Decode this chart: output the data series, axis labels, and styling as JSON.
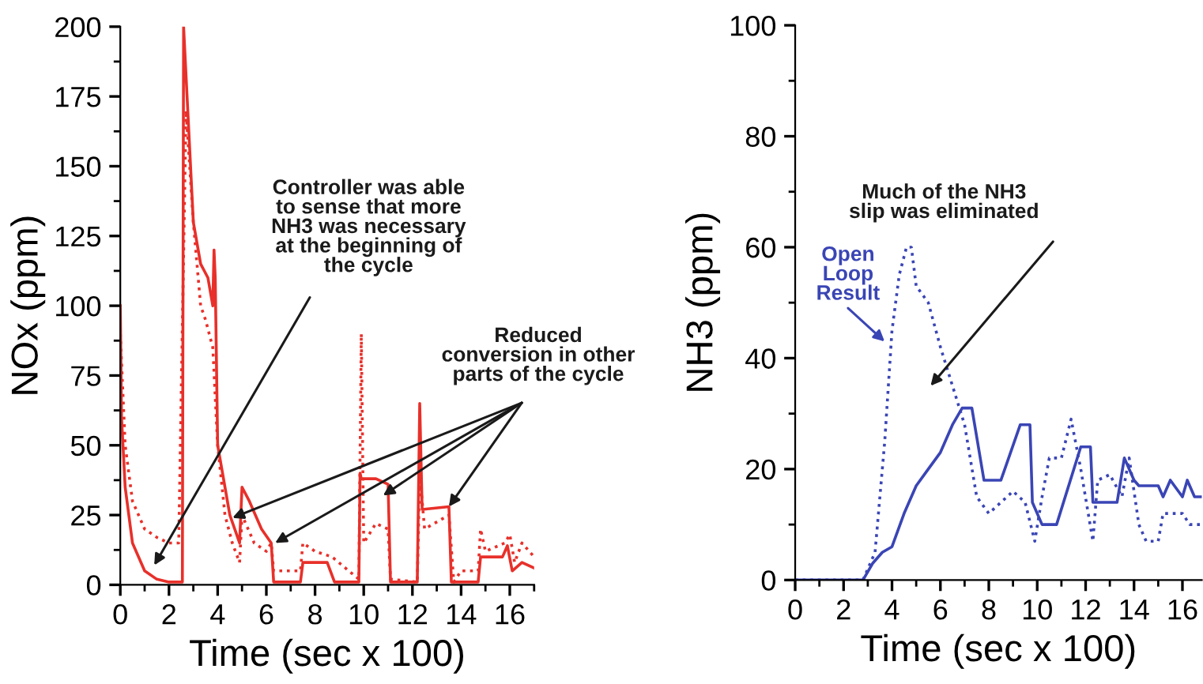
{
  "chart_data": [
    {
      "type": "line",
      "xlabel": "Time (sec x 100)",
      "ylabel": "NOx (ppm)",
      "xlim": [
        0,
        17
      ],
      "ylim": [
        0,
        200
      ],
      "xticks": [
        0,
        2,
        4,
        6,
        8,
        10,
        12,
        14,
        16
      ],
      "yticks": [
        0,
        25,
        50,
        75,
        100,
        125,
        150,
        175,
        200
      ],
      "grid": false,
      "legend": false,
      "series": [
        {
          "color": "#e8302a",
          "line_style": "solid",
          "x": [
            0,
            0.05,
            0.2,
            0.5,
            1,
            1.5,
            2,
            2.5,
            2.55,
            2.6,
            2.8,
            3.0,
            3.3,
            3.6,
            3.8,
            3.85,
            3.9,
            4.0,
            4.2,
            4.5,
            4.9,
            5.0,
            5.3,
            5.8,
            6.2,
            6.3,
            7.4,
            7.5,
            8.5,
            8.8,
            9.8,
            9.85,
            9.9,
            10.5,
            11,
            11.1,
            12.2,
            12.3,
            12.4,
            13.5,
            13.6,
            14.7,
            14.8,
            15.7,
            15.9,
            16.1,
            16.5,
            17
          ],
          "values": [
            100,
            60,
            35,
            15,
            5,
            2,
            1,
            1,
            1,
            200,
            165,
            130,
            115,
            110,
            100,
            120,
            110,
            50,
            40,
            25,
            15,
            35,
            30,
            20,
            15,
            1,
            1,
            8,
            8,
            1,
            1,
            40,
            38,
            38,
            36,
            1,
            1,
            65,
            27,
            28,
            1,
            1,
            10,
            10,
            14,
            5,
            8,
            6
          ]
        },
        {
          "color": "#e8302a",
          "line_style": "dotted",
          "x": [
            0,
            0.2,
            0.5,
            1,
            1.5,
            2,
            2.4,
            2.7,
            3.0,
            3.3,
            3.5,
            3.8,
            4.0,
            4.3,
            4.6,
            4.9,
            5.0,
            5.5,
            6.0,
            6.2,
            6.3,
            7.4,
            7.5,
            8,
            8.7,
            9.8,
            9.9,
            10,
            10.5,
            11,
            11.1,
            12.2,
            12.3,
            12.5,
            13.5,
            13.7,
            14,
            14.7,
            14.8,
            15,
            15.8,
            16,
            16.2,
            16.5,
            17
          ],
          "values": [
            90,
            50,
            30,
            20,
            17,
            15,
            15,
            170,
            130,
            100,
            95,
            85,
            50,
            25,
            15,
            8,
            25,
            15,
            12,
            15,
            5,
            5,
            15,
            12,
            10,
            2,
            90,
            15,
            22,
            20,
            2,
            1,
            40,
            20,
            25,
            1,
            5,
            5,
            20,
            12,
            15,
            18,
            8,
            15,
            10
          ]
        }
      ],
      "annotations": [
        "Controller was able\nto sense that more\nNH3 was necessary\nat the beginning of\nthe cycle",
        {
          "text": "Reduced\nconversion in other\nparts of the cycle",
          "x": 13.5,
          "y": 28
        }
      ]
    },
    {
      "type": "line",
      "xlabel": "Time (sec x 100)",
      "ylabel": "NH3 (ppm)",
      "xlim": [
        0,
        16.8
      ],
      "ylim": [
        0,
        100
      ],
      "xticks": [
        0,
        2,
        4,
        6,
        8,
        10,
        12,
        14,
        16
      ],
      "yticks": [
        0,
        20,
        40,
        60,
        80,
        100
      ],
      "grid": false,
      "legend": false,
      "series": [
        {
          "color": "#3a45b5",
          "line_style": "solid",
          "x": [
            0,
            2.8,
            3.2,
            3.6,
            4.0,
            4.5,
            5,
            5.5,
            6,
            6.5,
            6.9,
            7.3,
            7.8,
            8.5,
            9.3,
            9.7,
            9.8,
            10.2,
            10.8,
            11.8,
            12.2,
            12.3,
            13.3,
            13.6,
            14,
            14.2,
            15,
            15.2,
            15.5,
            16,
            16.2,
            16.5,
            16.8
          ],
          "values": [
            0,
            0,
            3,
            5,
            6,
            12,
            17,
            20,
            23,
            28,
            31,
            31,
            18,
            18,
            28,
            28,
            14,
            10,
            10,
            24,
            24,
            14,
            14,
            22,
            18,
            17,
            17,
            15,
            18,
            15,
            18,
            15,
            15
          ]
        },
        {
          "color": "#3a45b5",
          "line_style": "dotted",
          "x": [
            0,
            2.8,
            3.3,
            3.7,
            4.0,
            4.3,
            4.6,
            4.8,
            5.0,
            5.5,
            6.0,
            6.5,
            7.0,
            7.5,
            8,
            8.5,
            9,
            9.5,
            9.9,
            10.2,
            10.5,
            11,
            11.4,
            11.8,
            12.3,
            12.5,
            13,
            13.5,
            13.8,
            14.2,
            14.5,
            15,
            15.2,
            16,
            16.3,
            16.8
          ],
          "values": [
            0,
            0,
            5,
            25,
            45,
            55,
            60,
            60,
            53,
            50,
            42,
            35,
            28,
            15,
            12,
            14,
            16,
            14,
            7,
            15,
            22,
            22,
            29,
            20,
            7,
            18,
            19,
            15,
            22,
            10,
            7,
            7,
            12,
            12,
            10,
            10
          ]
        }
      ],
      "annotations": [
        "Much of the NH3\nslip was eliminated",
        "Open\nLoop\nResult"
      ]
    }
  ]
}
